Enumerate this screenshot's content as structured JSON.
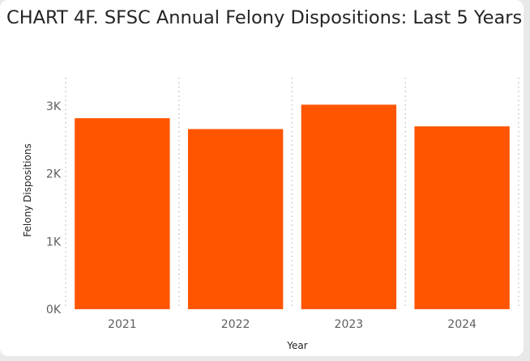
{
  "chart_data": {
    "type": "bar",
    "title": "CHART 4F. SFSC Annual Felony Dispositions: Last 5 Years",
    "xlabel": "Year",
    "ylabel": "Felony Dispositions",
    "categories": [
      "2021",
      "2022",
      "2023",
      "2024"
    ],
    "values": [
      2820,
      2660,
      3020,
      2700
    ],
    "ylim": [
      0,
      3000
    ],
    "yticks": [
      0,
      1000,
      2000,
      3000
    ],
    "ytick_labels": [
      "0K",
      "1K",
      "2K",
      "3K"
    ],
    "grid": "vertical dotted",
    "bar_color": "#ff5500",
    "grid_color": "#c8c6c4"
  }
}
